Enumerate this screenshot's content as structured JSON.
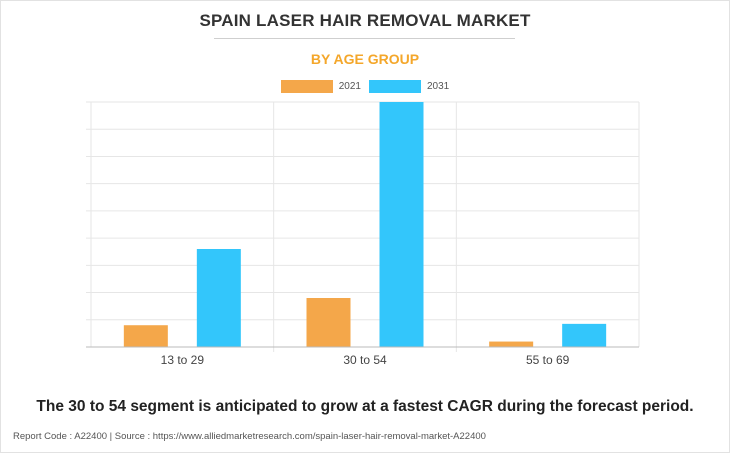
{
  "header": {
    "title": "SPAIN LASER HAIR REMOVAL MARKET",
    "subtitle": "BY AGE GROUP"
  },
  "colors": {
    "series_2021": "#f4a74a",
    "series_2031": "#33c6fb",
    "subtitle": "#f4a72b",
    "grid": "#e6e6e6",
    "axis": "#bbbbbb"
  },
  "chart_data": {
    "type": "bar",
    "categories": [
      "13 to 29",
      "30 to 54",
      "55 to 69"
    ],
    "series": [
      {
        "name": "2021",
        "values": [
          8,
          18,
          2
        ]
      },
      {
        "name": "2031",
        "values": [
          36,
          90,
          8.5
        ]
      }
    ],
    "ylim": [
      0,
      90
    ],
    "grid": true,
    "legend": "top-center"
  },
  "caption": "The 30 to 54 segment is anticipated to grow at a fastest CAGR during the forecast period.",
  "footer": "Report Code : A22400  |  Source : https://www.alliedmarketresearch.com/spain-laser-hair-removal-market-A22400"
}
